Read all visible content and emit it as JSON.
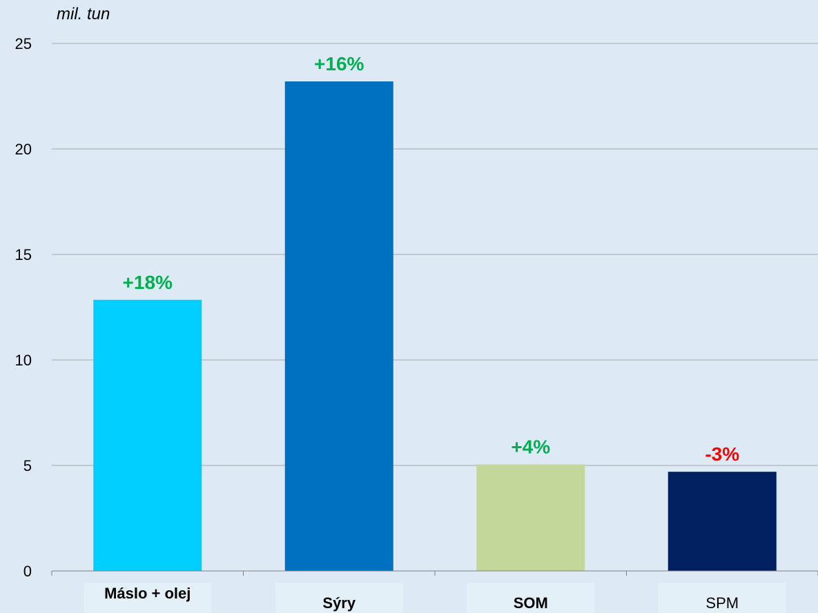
{
  "chart_data": {
    "type": "bar",
    "unit_label": "mil. tun",
    "categories": [
      "Máslo + olej",
      "Sýry",
      "SOM",
      "SPM"
    ],
    "category_bold": [
      true,
      true,
      true,
      false
    ],
    "values": [
      12.85,
      23.2,
      5.05,
      4.7
    ],
    "bar_colors": [
      "#00cfff",
      "#0070c0",
      "#c4d79b",
      "#002060"
    ],
    "category_box_color": "#e4f0f8",
    "data_labels": [
      "+18%",
      "+16%",
      "+4%",
      "-3%"
    ],
    "data_label_colors": [
      "#00b050",
      "#00b050",
      "#00b050",
      "#ff0000"
    ],
    "y_ticks": [
      "0",
      "5",
      "10",
      "15",
      "20",
      "25"
    ],
    "ylim": [
      0,
      25
    ],
    "grid": true,
    "grid_color": "#a6a6a6",
    "background_color": "#dde9f5"
  }
}
